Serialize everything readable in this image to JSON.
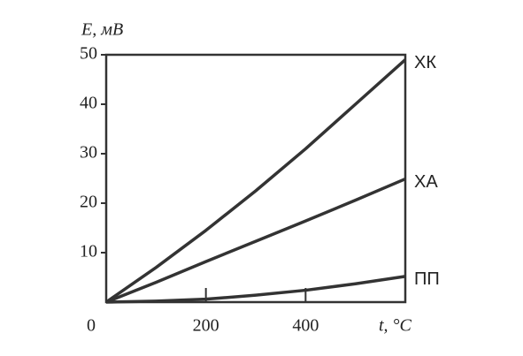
{
  "chart_data": {
    "type": "line",
    "y_label": "E, мВ",
    "x_label": "t, °C",
    "x": [
      0,
      100,
      200,
      300,
      400,
      500,
      600
    ],
    "series": [
      {
        "name": "ХК",
        "color": "#333333",
        "values": [
          0,
          7,
          14.5,
          22.5,
          31,
          40,
          49
        ]
      },
      {
        "name": "ХА",
        "color": "#333333",
        "values": [
          0,
          4,
          8.2,
          12.3,
          16.4,
          20.6,
          24.9
        ]
      },
      {
        "name": "ПП",
        "color": "#333333",
        "values": [
          0,
          0.2,
          0.6,
          1.4,
          2.4,
          3.7,
          5.2
        ]
      }
    ],
    "xlim": [
      0,
      600
    ],
    "ylim": [
      0,
      50
    ],
    "xticks": [
      0,
      200,
      400
    ],
    "yticks": [
      10,
      20,
      30,
      40,
      50
    ],
    "grid": false
  }
}
